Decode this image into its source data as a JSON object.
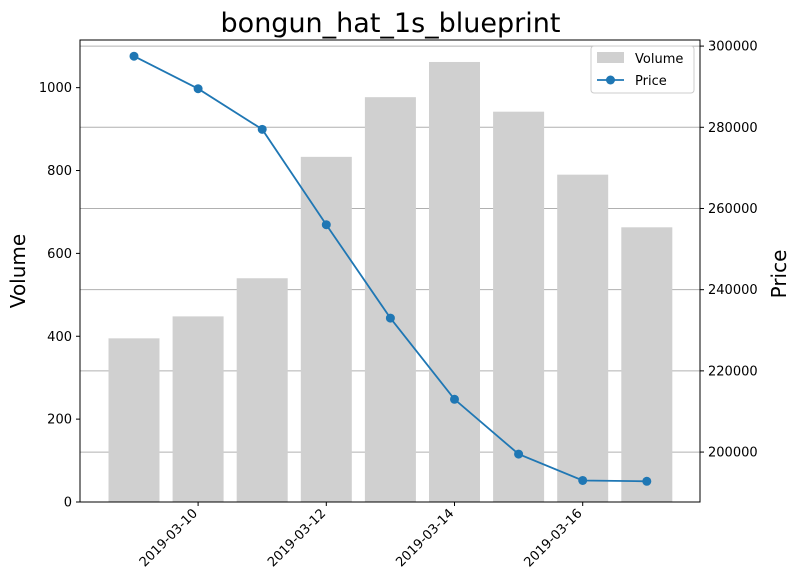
{
  "chart_data": {
    "type": "bar+line",
    "title": "bongun_hat_1s_blueprint",
    "x": [
      "2019-03-09",
      "2019-03-10",
      "2019-03-11",
      "2019-03-12",
      "2019-03-13",
      "2019-03-14",
      "2019-03-15",
      "2019-03-16",
      "2019-03-17"
    ],
    "x_tick_labels": [
      "2019-03-10",
      "2019-03-12",
      "2019-03-14",
      "2019-03-16"
    ],
    "series": [
      {
        "name": "Volume",
        "type": "bar",
        "axis": "left",
        "color": "#d0d0d0",
        "values": [
          395,
          448,
          540,
          833,
          977,
          1062,
          942,
          790,
          663
        ]
      },
      {
        "name": "Price",
        "type": "line",
        "axis": "right",
        "color": "#1f77b4",
        "marker": "circle",
        "values": [
          297500,
          289500,
          279500,
          256000,
          233000,
          213000,
          199500,
          193000,
          192800
        ]
      }
    ],
    "ylabel_left": "Volume",
    "ylabel_right": "Price",
    "ylim_left": [
      0,
      1115
    ],
    "yticks_left": [
      0,
      200,
      400,
      600,
      800,
      1000
    ],
    "ylim_right": [
      187700,
      301500
    ],
    "yticks_right": [
      200000,
      220000,
      240000,
      260000,
      280000,
      300000
    ],
    "grid": "right-axis horizontal",
    "legend_position": "top-right"
  }
}
